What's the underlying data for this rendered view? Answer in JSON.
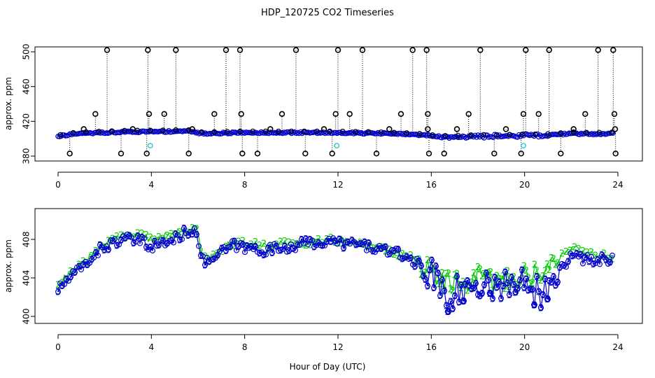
{
  "chart_data": {
    "title": "HDP_120725  CO2 Timeseries",
    "xlabel": "Hour of Day (UTC)",
    "colors": {
      "series_1": "#000000",
      "series_2": "#00cc00",
      "series_3": "#0000cc",
      "flag": "#33cccc"
    },
    "panels": [
      {
        "name": "top",
        "type": "scatter",
        "ylabel": "approx. ppm",
        "xlim": [
          0,
          24
        ],
        "ylim": [
          380,
          500
        ],
        "xticks": [
          "0",
          "4",
          "8",
          "12",
          "16",
          "20",
          "24"
        ],
        "yticks": [
          "380",
          "420",
          "460",
          "500"
        ],
        "baseline": [
          [
            0,
            402.5
          ],
          [
            0.5,
            405
          ],
          [
            1,
            406
          ],
          [
            2,
            407
          ],
          [
            3,
            408
          ],
          [
            4,
            408
          ],
          [
            5,
            408.5
          ],
          [
            5.5,
            409
          ],
          [
            6.2,
            406
          ],
          [
            7,
            406.5
          ],
          [
            8,
            407
          ],
          [
            10,
            407
          ],
          [
            12,
            407
          ],
          [
            13,
            406.5
          ],
          [
            14,
            406
          ],
          [
            15,
            405
          ],
          [
            15.7,
            404
          ],
          [
            16.3,
            402
          ],
          [
            17,
            402
          ],
          [
            18,
            403
          ],
          [
            19,
            403
          ],
          [
            20,
            403.5
          ],
          [
            21,
            404
          ],
          [
            22,
            406
          ],
          [
            23,
            405.5
          ],
          [
            23.8,
            406
          ]
        ],
        "spike_high": [
          2.1,
          3.85,
          5.05,
          7.2,
          7.8,
          10.2,
          12,
          13.05,
          15.2,
          15.8,
          18.1,
          20.05,
          21.05,
          23.15,
          23.8
        ],
        "spike_mid": [
          1.6,
          3.9,
          4.55,
          6.7,
          7.85,
          9.6,
          11.9,
          12.5,
          14.7,
          15.85,
          17.6,
          19.95,
          20.6,
          22.6,
          23.85
        ],
        "spike_low": [
          0.5,
          2.7,
          3.8,
          5.6,
          7.9,
          8.55,
          10.6,
          11.75,
          13.65,
          15.9,
          16.55,
          18.7,
          19.85,
          21.55,
          23.9
        ],
        "spike_small": [
          1.1,
          3.2,
          5.75,
          9.1,
          11.4,
          14.2,
          15.85,
          17.1,
          19.2,
          22.1,
          23.88
        ],
        "flags": [
          [
            3.95,
            392
          ],
          [
            11.95,
            392
          ],
          [
            19.95,
            392
          ]
        ]
      },
      {
        "name": "bottom",
        "type": "line",
        "ylabel": "approx. ppm",
        "xlim": [
          0,
          24
        ],
        "ylim": [
          399.5,
          410.5
        ],
        "xticks": [
          "0",
          "4",
          "8",
          "12",
          "16",
          "20",
          "24"
        ],
        "yticks": [
          "400",
          "404",
          "408"
        ],
        "series": [
          {
            "name": "2",
            "symbol": "2",
            "color": "#00cc00",
            "keys": [
              [
                0,
                403.5
              ],
              [
                0.5,
                404.5
              ],
              [
                1,
                405.3
              ],
              [
                1.5,
                406.5
              ],
              [
                2,
                407.5
              ],
              [
                2.5,
                408.3
              ],
              [
                3,
                408.6
              ],
              [
                3.5,
                408.4
              ],
              [
                4,
                408
              ],
              [
                4.5,
                408.4
              ],
              [
                5,
                408.6
              ],
              [
                5.5,
                409
              ],
              [
                5.9,
                409.3
              ],
              [
                6.2,
                406.2
              ],
              [
                6.5,
                406
              ],
              [
                7,
                407
              ],
              [
                7.5,
                407.7
              ],
              [
                8,
                407.5
              ],
              [
                9,
                407.3
              ],
              [
                10,
                407.6
              ],
              [
                11,
                407.9
              ],
              [
                12,
                408
              ],
              [
                13,
                407.6
              ],
              [
                14,
                407.1
              ],
              [
                15,
                406.2
              ],
              [
                15.7,
                405.3
              ],
              [
                16,
                404.5
              ],
              [
                16.5,
                403.5
              ],
              [
                17,
                403.2
              ],
              [
                18,
                404
              ],
              [
                19,
                403.6
              ],
              [
                20,
                404.3
              ],
              [
                21,
                404.8
              ],
              [
                22,
                407.3
              ],
              [
                23,
                406.4
              ],
              [
                23.8,
                406.2
              ]
            ],
            "amp": 0.7
          },
          {
            "name": "3",
            "symbol": "3",
            "color": "#0000cc",
            "keys": [
              [
                0,
                402.8
              ],
              [
                0.5,
                404
              ],
              [
                1,
                405
              ],
              [
                1.5,
                406.3
              ],
              [
                2,
                407.3
              ],
              [
                2.5,
                407.8
              ],
              [
                3,
                408
              ],
              [
                3.5,
                407.8
              ],
              [
                4,
                407.3
              ],
              [
                4.5,
                407.6
              ],
              [
                5,
                408
              ],
              [
                5.5,
                408.8
              ],
              [
                5.9,
                409.2
              ],
              [
                6.2,
                405.7
              ],
              [
                6.5,
                405.8
              ],
              [
                7,
                406.6
              ],
              [
                7.5,
                407.4
              ],
              [
                8,
                407.1
              ],
              [
                9,
                406.9
              ],
              [
                10,
                407.3
              ],
              [
                11,
                407.7
              ],
              [
                12,
                407.7
              ],
              [
                13,
                407.4
              ],
              [
                14,
                406.9
              ],
              [
                15,
                406.1
              ],
              [
                15.7,
                405
              ],
              [
                16,
                404.4
              ],
              [
                16.5,
                403
              ],
              [
                17,
                402.4
              ],
              [
                18,
                403.4
              ],
              [
                19,
                403.3
              ],
              [
                20,
                403.3
              ],
              [
                21,
                403.9
              ],
              [
                22,
                406.2
              ],
              [
                23,
                405.8
              ],
              [
                23.8,
                406
              ]
            ],
            "amp": 1.0,
            "dips": [
              [
                16.7,
                400.5
              ],
              [
                17.4,
                401.6
              ],
              [
                18.5,
                402.4
              ],
              [
                19.6,
                402.5
              ],
              [
                20.4,
                401.2
              ],
              [
                20.7,
                400.9
              ],
              [
                21,
                401.8
              ]
            ]
          }
        ]
      }
    ]
  }
}
